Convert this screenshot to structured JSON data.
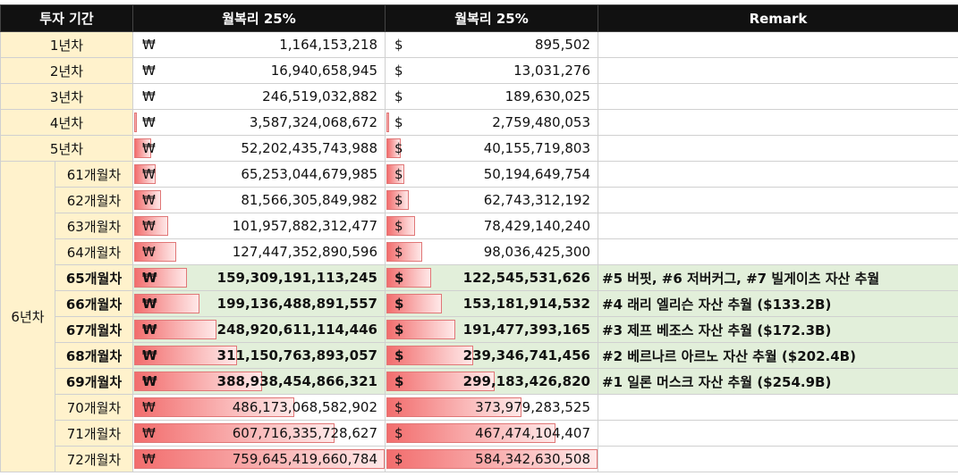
{
  "header": {
    "col_period": "투자 기간",
    "col_won": "월복리 25%",
    "col_usd": "월복리 25%",
    "col_remark": "Remark"
  },
  "currency": {
    "won": "₩",
    "usd": "$"
  },
  "year6_label": "6년차",
  "colors": {
    "header_bg": "#111111",
    "period_bg": "#fff2cc",
    "highlight_bg": "#e2efda",
    "bar": "#f26d6d"
  },
  "rows": [
    {
      "label": "1년차",
      "won": "1,164,153,218",
      "usd": "895,502",
      "remark": "",
      "bar": 0.0
    },
    {
      "label": "2년차",
      "won": "16,940,658,945",
      "usd": "13,031,276",
      "remark": "",
      "bar": 0.0
    },
    {
      "label": "3년차",
      "won": "246,519,032,882",
      "usd": "189,630,025",
      "remark": "",
      "bar": 0.0
    },
    {
      "label": "4년차",
      "won": "3,587,324,068,672",
      "usd": "2,759,480,053",
      "remark": "",
      "bar": 0.005
    },
    {
      "label": "5년차",
      "won": "52,202,435,743,988",
      "usd": "40,155,719,803",
      "remark": "",
      "bar": 0.069
    },
    {
      "label": "61개월차",
      "won": "65,253,044,679,985",
      "usd": "50,194,649,754",
      "remark": "",
      "bar": 0.086
    },
    {
      "label": "62개월차",
      "won": "81,566,305,849,982",
      "usd": "62,743,312,192",
      "remark": "",
      "bar": 0.107
    },
    {
      "label": "63개월차",
      "won": "101,957,882,312,477",
      "usd": "78,429,140,240",
      "remark": "",
      "bar": 0.134
    },
    {
      "label": "64개월차",
      "won": "127,447,352,890,596",
      "usd": "98,036,425,300",
      "remark": "",
      "bar": 0.168
    },
    {
      "label": "65개월차",
      "won": "159,309,191,113,245",
      "usd": "122,545,531,626",
      "remark": "#5 버핏, #6 저버커그, #7 빌게이츠 자산 추월",
      "bar": 0.21
    },
    {
      "label": "66개월차",
      "won": "199,136,488,891,557",
      "usd": "153,181,914,532",
      "remark": "#4 래리 엘리슨 자산 추월 ($133.2B)",
      "bar": 0.262
    },
    {
      "label": "67개월차",
      "won": "248,920,611,114,446",
      "usd": "191,477,393,165",
      "remark": "#3 제프 베조스 자산 추월 ($172.3B)",
      "bar": 0.328
    },
    {
      "label": "68개월차",
      "won": "311,150,763,893,057",
      "usd": "239,346,741,456",
      "remark": "#2 베르나르 아르노 자산 추월 ($202.4B)",
      "bar": 0.41
    },
    {
      "label": "69개월차",
      "won": "388,938,454,866,321",
      "usd": "299,183,426,820",
      "remark": "#1 일론 머스크 자산 추월 ($254.9B)",
      "bar": 0.512
    },
    {
      "label": "70개월차",
      "won": "486,173,068,582,902",
      "usd": "373,979,283,525",
      "remark": "",
      "bar": 0.64
    },
    {
      "label": "71개월차",
      "won": "607,716,335,728,627",
      "usd": "467,474,104,407",
      "remark": "",
      "bar": 0.8
    },
    {
      "label": "72개월차",
      "won": "759,645,419,660,784",
      "usd": "584,342,630,508",
      "remark": "",
      "bar": 1.0
    }
  ]
}
